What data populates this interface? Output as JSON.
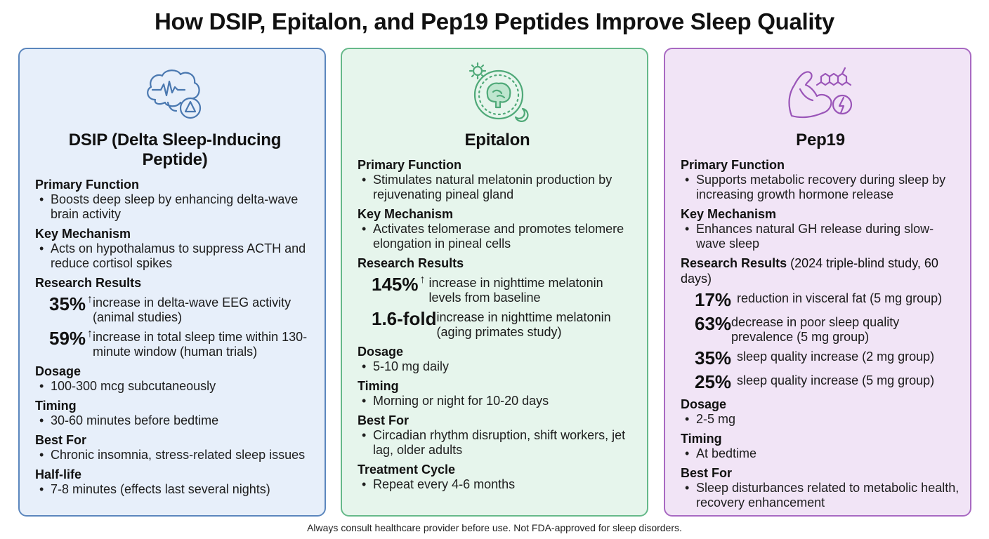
{
  "title": "How DSIP, Epitalon, and Pep19 Peptides Improve Sleep Quality",
  "footer": "Always consult healthcare provider before use. Not FDA-approved for sleep disorders.",
  "colors": {
    "dsip_accent": "#5b86bd",
    "epitalon_accent": "#66b98a",
    "pep19_accent": "#a869c2"
  },
  "cards": [
    {
      "icon": "brain-wave-delta-icon",
      "name": "DSIP (Delta Sleep-Inducing Peptide)",
      "primary_function": {
        "heading": "Primary Function",
        "text": "Boosts deep sleep by enhancing delta-wave brain activity"
      },
      "key_mechanism": {
        "heading": "Key Mechanism",
        "text": "Acts on hypothalamus to suppress ACTH and reduce cortisol spikes"
      },
      "research": {
        "heading": "Research Results",
        "stats": [
          {
            "value": "35%",
            "arrow": "↑",
            "text": "increase in delta-wave EEG activity (animal studies)"
          },
          {
            "value": "59%",
            "arrow": "↑",
            "text": "increase in total sleep time within 130-minute window (human trials)"
          }
        ]
      },
      "dosage": {
        "heading": "Dosage",
        "text": "100-300 mcg subcutaneously"
      },
      "timing": {
        "heading": "Timing",
        "text": "30-60 minutes before bedtime"
      },
      "best_for": {
        "heading": "Best For",
        "text": "Chronic insomnia, stress-related sleep issues"
      },
      "half_life": {
        "heading": "Half-life",
        "text": "7-8 minutes (effects last several nights)"
      }
    },
    {
      "icon": "brain-sun-moon-clock-icon",
      "name": "Epitalon",
      "primary_function": {
        "heading": "Primary Function",
        "text": "Stimulates natural melatonin production by rejuvenating pineal gland"
      },
      "key_mechanism": {
        "heading": "Key Mechanism",
        "text": "Activates telomerase and promotes telomere elongation in pineal cells"
      },
      "research": {
        "heading": "Research Results",
        "stats": [
          {
            "value": "145%",
            "arrow": "↑",
            "text": "increase in nighttime melatonin levels from baseline"
          },
          {
            "value": "1.6-fold",
            "arrow": "",
            "text": "increase in nighttime melatonin (aging primates study)"
          }
        ]
      },
      "dosage": {
        "heading": "Dosage",
        "text": "5-10 mg daily"
      },
      "timing": {
        "heading": "Timing",
        "text": "Morning or night for 10-20 days"
      },
      "best_for": {
        "heading": "Best For",
        "text": "Circadian rhythm disruption, shift workers, jet lag, older adults"
      },
      "treatment_cycle": {
        "heading": "Treatment Cycle",
        "text": "Repeat every 4-6 months"
      }
    },
    {
      "icon": "muscle-molecule-energy-icon",
      "name": "Pep19",
      "primary_function": {
        "heading": "Primary Function",
        "text": "Supports metabolic recovery during sleep by increasing growth hormone release"
      },
      "key_mechanism": {
        "heading": "Key Mechanism",
        "text": "Enhances natural GH release during slow-wave sleep"
      },
      "research": {
        "heading": "Research Results",
        "note": "(2024 triple-blind study, 60 days)",
        "stats": [
          {
            "value": "17%",
            "text": "reduction in visceral fat (5 mg group)"
          },
          {
            "value": "63%",
            "text": "decrease in poor sleep quality prevalence (5 mg group)"
          },
          {
            "value": "35%",
            "text": "sleep quality increase (2 mg group)"
          },
          {
            "value": "25%",
            "text": "sleep quality increase (5 mg group)"
          }
        ]
      },
      "dosage": {
        "heading": "Dosage",
        "text": "2-5 mg"
      },
      "timing": {
        "heading": "Timing",
        "text": "At bedtime"
      },
      "best_for": {
        "heading": "Best For",
        "text": "Sleep disturbances related to metabolic health, recovery enhancement"
      }
    }
  ]
}
